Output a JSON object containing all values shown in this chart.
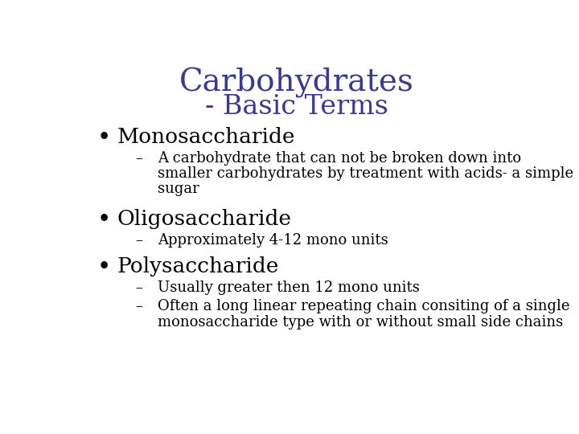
{
  "title_line1": "Carbohydrates",
  "title_line2": "- Basic Terms",
  "title_color": "#3B3B8C",
  "background_color": "#FFFFFF",
  "title_fontsize": 28,
  "title_line2_fontsize": 24,
  "bullet_items": [
    {
      "bullet": "Monosaccharide",
      "bullet_fontsize": 19,
      "sub_items": [
        [
          "A carbohydrate that can not be broken down into",
          "smaller carbohydrates by treatment with acids- a simple",
          "sugar"
        ]
      ],
      "sub_fontsize": 13
    },
    {
      "bullet": "Oligosaccharide",
      "bullet_fontsize": 19,
      "sub_items": [
        [
          "Approximately 4-12 mono units"
        ]
      ],
      "sub_fontsize": 13
    },
    {
      "bullet": "Polysaccharide",
      "bullet_fontsize": 19,
      "sub_items": [
        [
          "Usually greater then 12 mono units"
        ],
        [
          "Often a long linear repeating chain consiting of a single",
          "monosaccharide type with or without small side chains"
        ]
      ],
      "sub_fontsize": 13
    }
  ],
  "bullet_color": "#000000",
  "bullet_header_color": "#000000",
  "sub_color": "#000000",
  "font_family": "serif"
}
